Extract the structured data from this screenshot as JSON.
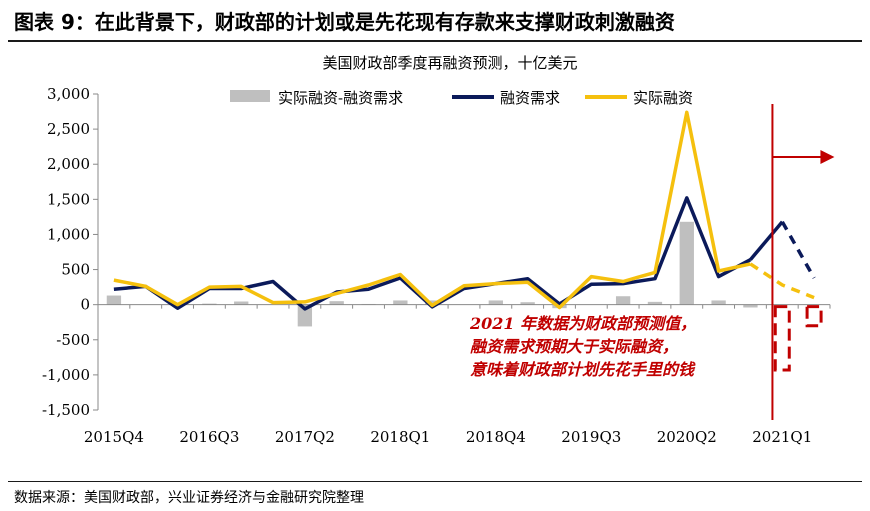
{
  "header": {
    "title": "图表 9：在此背景下，财政部的计划或是先花现有存款来支撑财政刺激融资"
  },
  "footer": {
    "source": "数据来源：美国财政部，兴业证券经济与金融研究院整理"
  },
  "chart_data": {
    "type": "bar",
    "subtitle": "美国财政部季度再融资预测，十亿美元",
    "ylim": [
      -1500,
      3000
    ],
    "yticks": [
      "3,000",
      "2,500",
      "2,000",
      "1,500",
      "1,000",
      "500",
      "0",
      "-500",
      "-1,000",
      "-1,500"
    ],
    "ytick_values": [
      3000,
      2500,
      2000,
      1500,
      1000,
      500,
      0,
      -500,
      -1000,
      -1500
    ],
    "xtick_labels": [
      "2015Q4",
      "2016Q3",
      "2017Q2",
      "2018Q1",
      "2018Q4",
      "2019Q3",
      "2020Q2",
      "2021Q1"
    ],
    "xtick_index": [
      0,
      3,
      6,
      9,
      12,
      15,
      18,
      21
    ],
    "n_periods": 23,
    "legend": {
      "position": "top",
      "items": [
        {
          "name": "实际融资-融资需求",
          "color": "#bfbfbf",
          "kind": "bar"
        },
        {
          "name": "融资需求",
          "color": "#0b1a5a",
          "kind": "line"
        },
        {
          "name": "实际融资",
          "color": "#f5c00e",
          "kind": "line"
        }
      ]
    },
    "series": [
      {
        "name": "实际融资-融资需求",
        "kind": "bar",
        "color": "#bfbfbf",
        "values": [
          130,
          0,
          0,
          15,
          45,
          0,
          -310,
          50,
          10,
          60,
          60,
          0,
          60,
          35,
          -50,
          0,
          120,
          40,
          1180,
          60,
          -40,
          0,
          0
        ]
      },
      {
        "name": "融资需求",
        "kind": "line",
        "color": "#0b1a5a",
        "values": [
          220,
          260,
          -50,
          230,
          230,
          330,
          -60,
          180,
          220,
          380,
          -30,
          230,
          300,
          370,
          10,
          290,
          300,
          370,
          1520,
          400,
          640,
          1180,
          380
        ]
      },
      {
        "name": "实际融资",
        "kind": "line",
        "color": "#f5c00e",
        "values": [
          350,
          260,
          0,
          250,
          260,
          30,
          40,
          160,
          280,
          430,
          -10,
          270,
          300,
          320,
          -40,
          400,
          330,
          460,
          2740,
          480,
          580,
          280,
          100
        ]
      }
    ],
    "forecast": {
      "divider_after_index": 20,
      "dashed_line_segment": [
        20,
        22
      ],
      "dashed_bars": [
        {
          "index": 21,
          "value": -930
        },
        {
          "index": 22,
          "value": -300
        }
      ],
      "annotation": [
        "2021 年数据为财政部预测值，",
        "融资需求预期大于实际融资，",
        "意味着财政部计划先花手里的钱"
      ],
      "accent": "#c00000"
    }
  }
}
